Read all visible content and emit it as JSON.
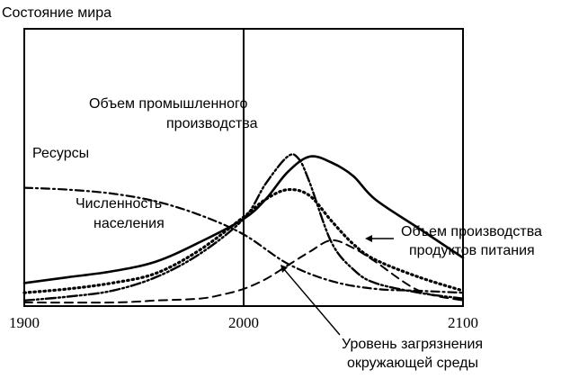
{
  "chart_data": {
    "type": "line",
    "title": "",
    "ylabel": "Состояние мира",
    "xlabel": "",
    "x_ticks": [
      "1900",
      "2000",
      "2100"
    ],
    "xlim": [
      1900,
      2100
    ],
    "ylim": [
      0,
      1
    ],
    "y_scale": "relative (no numeric ticks)",
    "vertical_marker": 2000,
    "grid": false,
    "legend": "none (curves labeled directly)",
    "series": [
      {
        "name": "Ресурсы",
        "style": "dash-dot",
        "x": [
          1900,
          1920,
          1940,
          1960,
          1980,
          2000,
          2020,
          2040,
          2060,
          2080,
          2100
        ],
        "y": [
          0.59,
          0.58,
          0.56,
          0.52,
          0.45,
          0.35,
          0.2,
          0.11,
          0.07,
          0.06,
          0.05
        ]
      },
      {
        "name": "Численность населения",
        "style": "dotted",
        "x": [
          1900,
          1920,
          1940,
          1960,
          1980,
          2000,
          2010,
          2020,
          2030,
          2040,
          2050,
          2060,
          2080,
          2100
        ],
        "y": [
          0.05,
          0.07,
          0.1,
          0.15,
          0.27,
          0.44,
          0.53,
          0.58,
          0.55,
          0.42,
          0.3,
          0.22,
          0.13,
          0.06
        ]
      },
      {
        "name": "Объем промышленного производства",
        "style": "dash-dot-dot",
        "x": [
          1900,
          1920,
          1940,
          1960,
          1980,
          2000,
          2010,
          2020,
          2025,
          2030,
          2040,
          2050,
          2060,
          2080,
          2100
        ],
        "y": [
          0.01,
          0.03,
          0.06,
          0.13,
          0.25,
          0.43,
          0.61,
          0.75,
          0.74,
          0.62,
          0.31,
          0.17,
          0.1,
          0.05,
          0.02
        ]
      },
      {
        "name": "Объем производства продуктов питания",
        "style": "solid",
        "x": [
          1900,
          1920,
          1940,
          1960,
          1980,
          2000,
          2010,
          2020,
          2030,
          2040,
          2050,
          2060,
          2080,
          2100
        ],
        "y": [
          0.1,
          0.13,
          0.16,
          0.21,
          0.31,
          0.43,
          0.53,
          0.67,
          0.75,
          0.72,
          0.65,
          0.53,
          0.38,
          0.23
        ]
      },
      {
        "name": "Уровень загрязнения окружающей среды",
        "style": "dashed",
        "x": [
          1900,
          1940,
          1960,
          1980,
          1990,
          2000,
          2010,
          2020,
          2030,
          2040,
          2050,
          2060,
          2080,
          2100
        ],
        "y": [
          0.0,
          0.0,
          0.01,
          0.02,
          0.04,
          0.07,
          0.12,
          0.19,
          0.26,
          0.32,
          0.28,
          0.21,
          0.06,
          0.01
        ]
      }
    ],
    "annotations": [
      "Ресурсы",
      "Численность населения",
      "Объем промышленного производства",
      "Объем производства продуктов питания",
      "Уровень загрязнения окружающей среды"
    ]
  },
  "labels": {
    "y_axis": "Состояние мира",
    "resources": "Ресурсы",
    "population_line1": "Численность",
    "population_line2": "населения",
    "industry_line1": "Объем промышленного",
    "industry_line2": "производства",
    "food_line1": "Объем производства",
    "food_line2": "продуктов питания",
    "pollution_line1": "Уровень загрязнения",
    "pollution_line2": "окружающей среды"
  }
}
